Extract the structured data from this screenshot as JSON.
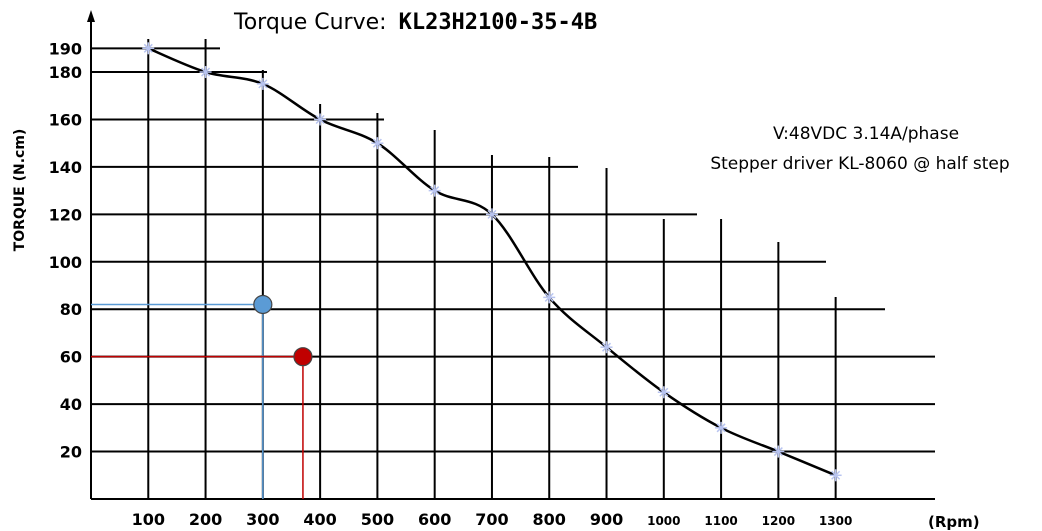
{
  "chart_data": {
    "type": "line",
    "title_prefix": "Torque Curve:",
    "title_model": "KL23H2100-35-4B",
    "xlabel": "(Rpm)",
    "ylabel": "TORQUE (N.cm)",
    "annotations": [
      "V:48VDC 3.14A/phase",
      "Stepper driver KL-8060 @ half step"
    ],
    "x_ticks": [
      "100",
      "200",
      "300",
      "400",
      "500",
      "600",
      "700",
      "800",
      "900",
      "1000",
      "1100",
      "1200",
      "1300"
    ],
    "y_ticks": [
      "20",
      "40",
      "60",
      "80",
      "100",
      "120",
      "140",
      "160",
      "180",
      "190"
    ],
    "xlim": [
      0,
      1440
    ],
    "ylim": [
      0,
      200
    ],
    "grid": true,
    "series": [
      {
        "x": [
          100,
          200,
          300,
          400,
          500,
          600,
          700,
          800,
          900,
          1000,
          1100,
          1200,
          1300
        ],
        "y": [
          190,
          180,
          175,
          160,
          150,
          130,
          120,
          85,
          64,
          45,
          30,
          20,
          10
        ],
        "color": "#000000"
      }
    ],
    "operating_points": [
      {
        "x": 300,
        "y": 82,
        "color": "#5b9bd5"
      },
      {
        "x": 370,
        "y": 60,
        "color": "#c00000"
      }
    ]
  }
}
